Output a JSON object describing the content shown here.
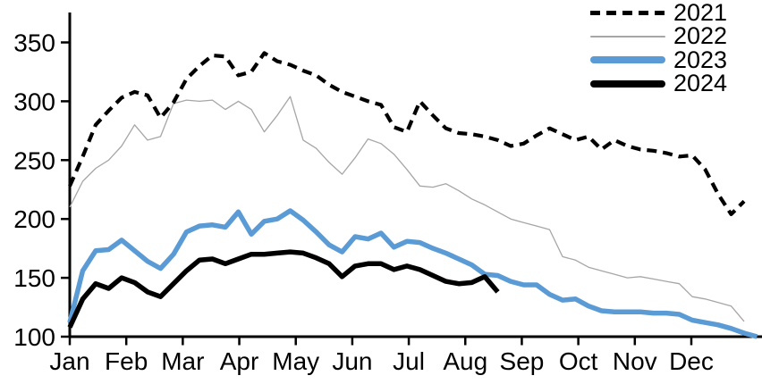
{
  "chart_data": {
    "type": "line",
    "title": "",
    "x_label": "",
    "y_label": "",
    "x_unit": "week",
    "grid": false,
    "legend_position": "top-right",
    "x_tick_labels": [
      "Jan",
      "Feb",
      "Mar",
      "Apr",
      "May",
      "Jun",
      "Jul",
      "Aug",
      "Sep",
      "Oct",
      "Nov",
      "Dec"
    ],
    "y_ticks": [
      100,
      150,
      200,
      250,
      300,
      350
    ],
    "y_range": [
      100,
      375
    ],
    "axis_color": "#000000",
    "series": [
      {
        "name": "2021",
        "color": "#000000",
        "line_style": "dashed",
        "line_width": 4.2,
        "values": [
          228,
          253,
          280,
          292,
          303,
          308,
          305,
          286,
          299,
          319,
          330,
          339,
          338,
          322,
          325,
          341,
          334,
          331,
          326,
          322,
          314,
          308,
          304,
          300,
          297,
          278,
          274,
          300,
          288,
          277,
          273,
          272,
          270,
          267,
          262,
          264,
          271,
          277,
          272,
          267,
          270,
          259,
          267,
          262,
          259,
          258,
          256,
          253,
          254,
          242,
          221,
          204,
          215
        ]
      },
      {
        "name": "2022",
        "color": "#a6a6a6",
        "line_style": "solid",
        "line_width": 1.3,
        "values": [
          210,
          232,
          243,
          250,
          262,
          280,
          267,
          270,
          298,
          301,
          300,
          301,
          293,
          300,
          293,
          274,
          288,
          304,
          267,
          260,
          248,
          238,
          252,
          268,
          264,
          255,
          242,
          228,
          227,
          230,
          224,
          217,
          212,
          206,
          200,
          197,
          194,
          191,
          168,
          165,
          159,
          156,
          153,
          150,
          151,
          149,
          147,
          145,
          134,
          132,
          129,
          126,
          113
        ]
      },
      {
        "name": "2023",
        "color": "#5b9bd5",
        "line_style": "solid",
        "line_width": 5.5,
        "values": [
          112,
          156,
          173,
          174,
          182,
          173,
          164,
          158,
          170,
          189,
          194,
          195,
          193,
          206,
          187,
          198,
          200,
          207,
          199,
          189,
          178,
          172,
          185,
          183,
          188,
          176,
          181,
          180,
          175,
          171,
          166,
          161,
          153,
          152,
          147,
          144,
          144,
          136,
          131,
          132,
          126,
          122,
          121,
          121,
          121,
          120,
          120,
          119,
          114,
          112,
          110,
          107,
          103,
          100
        ]
      },
      {
        "name": "2024",
        "color": "#000000",
        "line_style": "solid",
        "line_width": 5.5,
        "values": [
          108,
          132,
          145,
          141,
          150,
          146,
          138,
          134,
          145,
          156,
          165,
          166,
          162,
          166,
          170,
          170,
          171,
          172,
          171,
          167,
          162,
          151,
          160,
          162,
          162,
          157,
          160,
          157,
          152,
          147,
          145,
          146,
          151,
          138
        ]
      }
    ]
  }
}
